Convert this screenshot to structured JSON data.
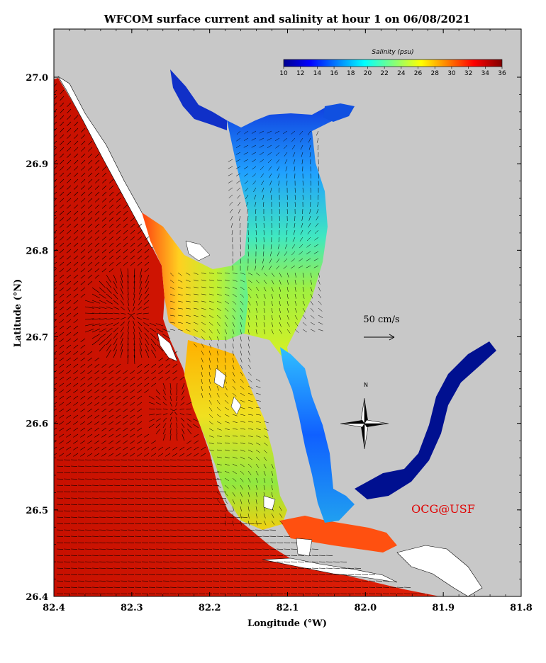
{
  "title": "WFCOM surface current and salinity at hour 1 on 06/08/2021",
  "x_axis": {
    "label": "Longitude (°W)",
    "ticks": [
      "82.4",
      "82.3",
      "82.2",
      "82.1",
      "82.0",
      "81.9",
      "81.8"
    ]
  },
  "y_axis": {
    "label": "Latitude (°N)",
    "ticks": [
      "27.0",
      "26.9",
      "26.8",
      "26.7",
      "26.6",
      "26.5",
      "26.4"
    ]
  },
  "colorbar": {
    "title": "Salinity (psu)",
    "ticks": [
      "10",
      "12",
      "14",
      "16",
      "18",
      "20",
      "22",
      "24",
      "26",
      "28",
      "30",
      "32",
      "34",
      "36"
    ],
    "range": [
      10,
      36
    ],
    "colormap": "jet"
  },
  "scale_arrow": {
    "label": "50 cm/s"
  },
  "north_arrow": {
    "label": "N"
  },
  "credit": "OCG@USF",
  "colors": {
    "land": "#c8c8c8",
    "coast_fill": "#ffffff",
    "high_salinity": "#d01000",
    "low_salinity": "#00108c",
    "credit": "#e00000"
  }
}
